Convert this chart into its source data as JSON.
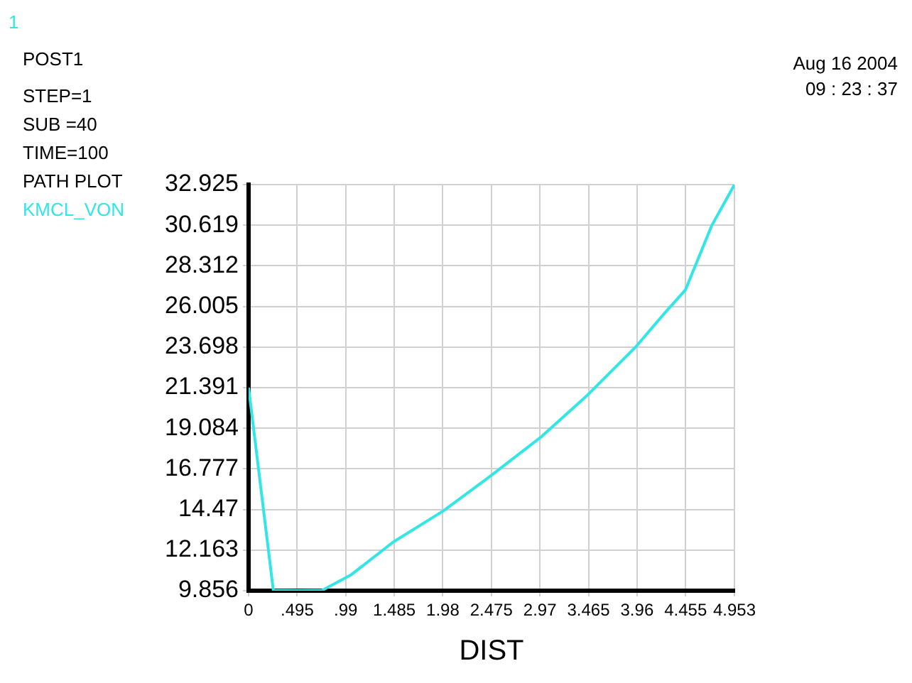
{
  "chart_data": {
    "type": "line",
    "xlabel": "DIST",
    "annotations": [
      "1",
      "POST1",
      "STEP=1",
      "SUB =40",
      "TIME=100",
      "PATH PLOT",
      "Aug 16 2004",
      "09 : 23 : 37"
    ],
    "series": [
      {
        "name": "KMCL_VON",
        "color": "#33e6e6",
        "x": [
          0,
          0.252,
          0.508,
          0.75,
          1.04,
          1.477,
          1.985,
          2.445,
          2.978,
          3.461,
          3.946,
          4.236,
          4.453,
          4.72,
          4.953
        ],
        "values": [
          21.39,
          9.88,
          9.86,
          9.88,
          10.74,
          12.63,
          14.39,
          16.28,
          18.57,
          21.0,
          23.7,
          25.59,
          26.94,
          30.58,
          32.92
        ]
      }
    ],
    "xlim": [
      0,
      4.953
    ],
    "xticks": [
      0,
      {
        "value": 0.495,
        "label": ".495"
      },
      {
        "value": 0.99,
        "label": ".99"
      },
      1.485,
      1.98,
      2.475,
      2.97,
      3.465,
      3.96,
      4.455,
      4.953
    ],
    "ylim": [
      9.856,
      32.925
    ],
    "yticks": [
      9.856,
      12.163,
      14.47,
      16.777,
      19.084,
      21.391,
      23.698,
      26.005,
      28.312,
      30.619,
      32.925
    ],
    "grid": true,
    "marker": "none",
    "line_style": "solid"
  }
}
